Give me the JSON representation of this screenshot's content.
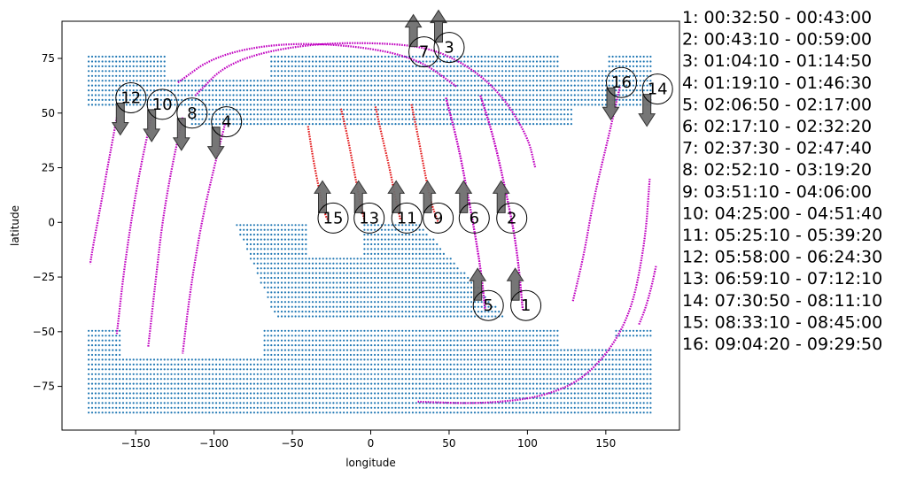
{
  "chart_data": {
    "type": "scatter",
    "title": "",
    "xlabel": "longitude",
    "ylabel": "latitude",
    "xlim": [
      -197,
      197
    ],
    "ylim": [
      -95,
      92
    ],
    "xticks": [
      -150,
      -100,
      -50,
      0,
      50,
      100,
      150
    ],
    "yticks": [
      -75,
      -50,
      -25,
      0,
      25,
      50,
      75
    ],
    "grid": false,
    "colors": {
      "landmask": "#1f77b4",
      "ascending_track": "#e31a1c",
      "descending_track": "#c000c0",
      "arrow_fill": "#6f6f6f",
      "arrow_edge": "#333333"
    },
    "land_regions": [
      {
        "name": "north",
        "lat_range": [
          45,
          78
        ],
        "lon_range": [
          -180,
          180
        ]
      },
      {
        "name": "south-america",
        "lat_range": [
          -45,
          0
        ],
        "lon_range": [
          -80,
          100
        ]
      },
      {
        "name": "antarctica",
        "lat_range": [
          -88,
          -48
        ],
        "lon_range": [
          -180,
          180
        ]
      }
    ],
    "tracks": [
      {
        "id": "1",
        "kind": "descending",
        "points": [
          [
            70,
            58
          ],
          [
            78,
            40
          ],
          [
            86,
            15
          ],
          [
            93,
            -10
          ],
          [
            97,
            -40
          ]
        ]
      },
      {
        "id": "2",
        "kind": "descending",
        "points": [
          [
            70,
            58
          ],
          [
            78,
            40
          ],
          [
            86,
            15
          ],
          [
            93,
            -10
          ],
          [
            97,
            -40
          ]
        ]
      },
      {
        "id": "3",
        "kind": "descending",
        "points": [
          [
            -112,
            58
          ],
          [
            -90,
            74
          ],
          [
            -40,
            82
          ],
          [
            20,
            82
          ],
          [
            50,
            77
          ],
          [
            80,
            62
          ],
          [
            100,
            40
          ],
          [
            105,
            25
          ]
        ]
      },
      {
        "id": "4",
        "kind": "descending",
        "points": [
          [
            -93,
            45
          ],
          [
            -100,
            25
          ],
          [
            -108,
            0
          ],
          [
            -115,
            -30
          ],
          [
            -120,
            -60
          ]
        ]
      },
      {
        "id": "5",
        "kind": "descending",
        "points": [
          [
            48,
            57
          ],
          [
            56,
            35
          ],
          [
            64,
            5
          ],
          [
            70,
            -20
          ],
          [
            73,
            -40
          ]
        ]
      },
      {
        "id": "6",
        "kind": "descending",
        "points": [
          [
            48,
            57
          ],
          [
            56,
            35
          ],
          [
            64,
            5
          ],
          [
            70,
            -20
          ],
          [
            73,
            -40
          ]
        ]
      },
      {
        "id": "7",
        "kind": "descending",
        "points": [
          [
            -123,
            64
          ],
          [
            -100,
            76
          ],
          [
            -60,
            82
          ],
          [
            -10,
            81
          ],
          [
            30,
            75
          ],
          [
            55,
            62
          ]
        ]
      },
      {
        "id": "8",
        "kind": "descending",
        "points": [
          [
            -120,
            48
          ],
          [
            -127,
            25
          ],
          [
            -133,
            0
          ],
          [
            -137,
            -25
          ],
          [
            -142,
            -57
          ]
        ]
      },
      {
        "id": "9",
        "kind": "ascending",
        "points": [
          [
            26,
            54
          ],
          [
            30,
            40
          ],
          [
            34,
            25
          ],
          [
            38,
            10
          ],
          [
            43,
            0
          ]
        ]
      },
      {
        "id": "10",
        "kind": "descending",
        "points": [
          [
            -140,
            48
          ],
          [
            -147,
            25
          ],
          [
            -153,
            0
          ],
          [
            -158,
            -25
          ],
          [
            -162,
            -51
          ]
        ]
      },
      {
        "id": "11",
        "kind": "ascending",
        "points": [
          [
            3,
            53
          ],
          [
            7,
            40
          ],
          [
            12,
            25
          ],
          [
            16,
            10
          ],
          [
            19,
            1
          ]
        ]
      },
      {
        "id": "12",
        "kind": "descending",
        "points": [
          [
            -162,
            48
          ],
          [
            -168,
            25
          ],
          [
            -173,
            5
          ],
          [
            -177,
            -10
          ],
          [
            -179,
            -19
          ]
        ]
      },
      {
        "id": "13",
        "kind": "ascending",
        "points": [
          [
            -19,
            52
          ],
          [
            -15,
            40
          ],
          [
            -11,
            25
          ],
          [
            -7,
            10
          ],
          [
            -4,
            1
          ]
        ]
      },
      {
        "id": "14",
        "kind": "descending",
        "points": [
          [
            182,
            -20
          ],
          [
            179,
            -30
          ],
          [
            175,
            -40
          ],
          [
            171,
            -47
          ]
        ]
      },
      {
        "id": "15",
        "kind": "ascending",
        "points": [
          [
            -40,
            44
          ],
          [
            -37,
            30
          ],
          [
            -33,
            15
          ],
          [
            -29,
            3
          ],
          [
            -27,
            1
          ]
        ]
      },
      {
        "id": "16",
        "kind": "descending",
        "points": [
          [
            159,
            62
          ],
          [
            152,
            40
          ],
          [
            142,
            10
          ],
          [
            136,
            -15
          ],
          [
            129,
            -36
          ]
        ]
      },
      {
        "id": "arc-s",
        "kind": "descending",
        "points": [
          [
            30,
            -82
          ],
          [
            70,
            -83
          ],
          [
            110,
            -80
          ],
          [
            140,
            -70
          ],
          [
            165,
            -45
          ],
          [
            175,
            -10
          ],
          [
            178,
            20
          ]
        ]
      }
    ],
    "markers": [
      {
        "label": "1",
        "lon": 99,
        "lat": -38,
        "arrow": "up"
      },
      {
        "label": "2",
        "lon": 90,
        "lat": 2,
        "arrow": "up"
      },
      {
        "label": "3",
        "lon": 50,
        "lat": 80,
        "arrow": "up"
      },
      {
        "label": "4",
        "lon": -92,
        "lat": 46,
        "arrow": "down"
      },
      {
        "label": "5",
        "lon": 75,
        "lat": -38,
        "arrow": "up"
      },
      {
        "label": "6",
        "lon": 66,
        "lat": 2,
        "arrow": "up"
      },
      {
        "label": "7",
        "lon": 34,
        "lat": 78,
        "arrow": "up"
      },
      {
        "label": "8",
        "lon": -114,
        "lat": 50,
        "arrow": "down"
      },
      {
        "label": "9",
        "lon": 43,
        "lat": 2,
        "arrow": "up"
      },
      {
        "label": "10",
        "lon": -133,
        "lat": 54,
        "arrow": "down"
      },
      {
        "label": "11",
        "lon": 23,
        "lat": 2,
        "arrow": "up"
      },
      {
        "label": "12",
        "lon": -153,
        "lat": 57,
        "arrow": "down"
      },
      {
        "label": "13",
        "lon": -1,
        "lat": 2,
        "arrow": "up"
      },
      {
        "label": "14",
        "lon": 183,
        "lat": 61,
        "arrow": "down"
      },
      {
        "label": "15",
        "lon": -24,
        "lat": 2,
        "arrow": "up"
      },
      {
        "label": "16",
        "lon": 160,
        "lat": 64,
        "arrow": "down"
      }
    ],
    "legend_position": "right",
    "legend": [
      "1:  00:32:50 - 00:43:00",
      "2:  00:43:10 - 00:59:00",
      "3:  01:04:10 - 01:14:50",
      "4:  01:19:10 - 01:46:30",
      "5:  02:06:50 - 02:17:00",
      "6:  02:17:10 - 02:32:20",
      "7:  02:37:30 - 02:47:40",
      "8:  02:52:10 - 03:19:20",
      "9:  03:51:10 - 04:06:00",
      "10:  04:25:00 - 04:51:40",
      "11:  05:25:10 - 05:39:20",
      "12:  05:58:00 - 06:24:30",
      "13:  06:59:10 - 07:12:10",
      "14:  07:30:50 - 08:11:10",
      "15:  08:33:10 - 08:45:00",
      "16:  09:04:20 - 09:29:50"
    ]
  }
}
